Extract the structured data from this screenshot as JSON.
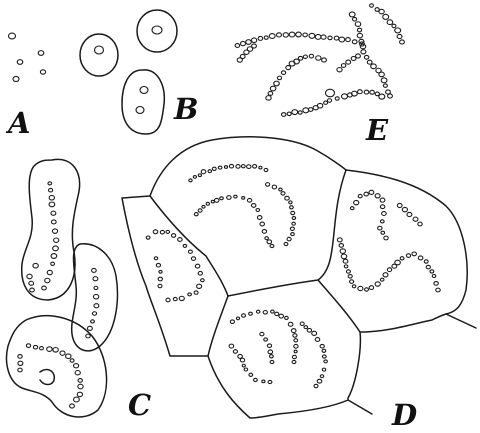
{
  "figure": {
    "labels": {
      "a": "A",
      "b": "B",
      "c": "C",
      "d": "D",
      "e": "E"
    }
  }
}
